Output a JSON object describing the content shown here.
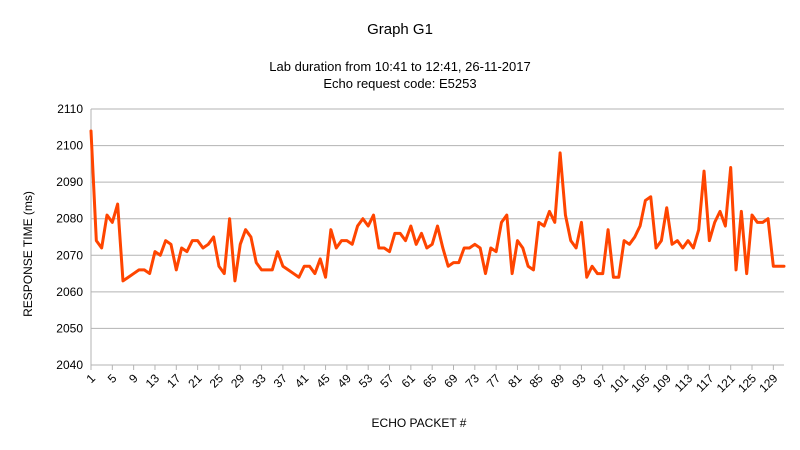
{
  "chart_data": {
    "type": "line",
    "title": "Graph G1",
    "subtitle_lines": [
      "Lab duration from 10:41 to 12:41, 26-11-2017",
      "Echo request code: E5253"
    ],
    "xlabel": "ECHO PACKET #",
    "ylabel": "RESPONSE TIME (ms)",
    "ylim": [
      2040,
      2110
    ],
    "yticks": [
      2040,
      2050,
      2060,
      2070,
      2080,
      2090,
      2100,
      2110
    ],
    "x_tick_labels": [
      1,
      5,
      9,
      13,
      17,
      21,
      25,
      29,
      33,
      37,
      41,
      45,
      49,
      53,
      57,
      61,
      65,
      69,
      73,
      77,
      81,
      85,
      89,
      93,
      97,
      101,
      105,
      109,
      113,
      117,
      121,
      125,
      129
    ],
    "grid": true,
    "legend": "none",
    "series": [
      {
        "name": "Response time",
        "color": "#ff4500",
        "x_start": 1,
        "values": [
          2104,
          2074,
          2072,
          2081,
          2079,
          2084,
          2063,
          2064,
          2065,
          2066,
          2066,
          2065,
          2071,
          2070,
          2074,
          2073,
          2066,
          2072,
          2071,
          2074,
          2074,
          2072,
          2073,
          2075,
          2067,
          2065,
          2080,
          2063,
          2073,
          2077,
          2075,
          2068,
          2066,
          2066,
          2066,
          2071,
          2067,
          2066,
          2065,
          2064,
          2067,
          2067,
          2065,
          2069,
          2064,
          2077,
          2072,
          2074,
          2074,
          2073,
          2078,
          2080,
          2078,
          2081,
          2072,
          2072,
          2071,
          2076,
          2076,
          2074,
          2078,
          2073,
          2076,
          2072,
          2073,
          2078,
          2072,
          2067,
          2068,
          2068,
          2072,
          2072,
          2073,
          2072,
          2065,
          2072,
          2071,
          2079,
          2081,
          2065,
          2074,
          2072,
          2067,
          2066,
          2079,
          2078,
          2082,
          2079,
          2098,
          2081,
          2074,
          2072,
          2079,
          2064,
          2067,
          2065,
          2065,
          2077,
          2064,
          2064,
          2074,
          2073,
          2075,
          2078,
          2085,
          2086,
          2072,
          2074,
          2083,
          2073,
          2074,
          2072,
          2074,
          2072,
          2077,
          2093,
          2074,
          2079,
          2082,
          2078,
          2094,
          2066,
          2082,
          2065,
          2081,
          2079,
          2079,
          2080,
          2067,
          2067,
          2067
        ]
      }
    ]
  }
}
